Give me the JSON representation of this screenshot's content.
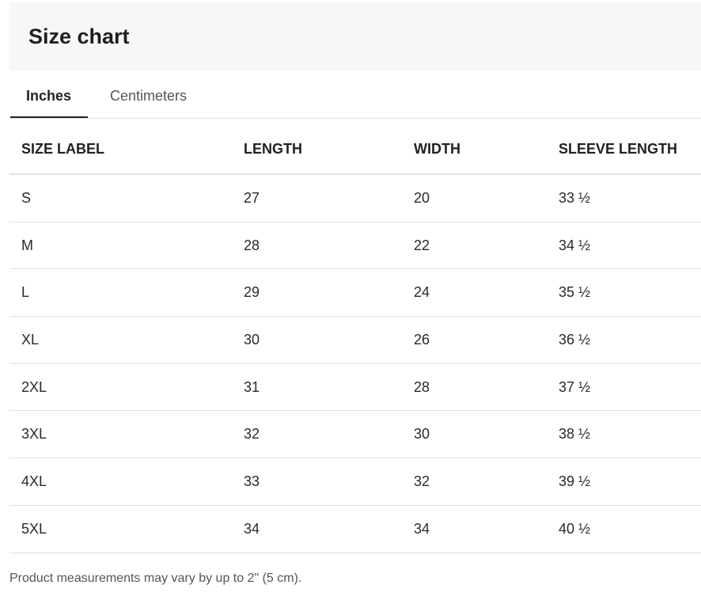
{
  "header": {
    "title": "Size chart"
  },
  "tabs": [
    {
      "label": "Inches",
      "active": true
    },
    {
      "label": "Centimeters",
      "active": false
    }
  ],
  "table": {
    "columns": [
      "SIZE LABEL",
      "LENGTH",
      "WIDTH",
      "SLEEVE LENGTH"
    ],
    "rows": [
      [
        "S",
        "27",
        "20",
        "33 ½"
      ],
      [
        "M",
        "28",
        "22",
        "34 ½"
      ],
      [
        "L",
        "29",
        "24",
        "35 ½"
      ],
      [
        "XL",
        "30",
        "26",
        "36 ½"
      ],
      [
        "2XL",
        "31",
        "28",
        "37 ½"
      ],
      [
        "3XL",
        "32",
        "30",
        "38 ½"
      ],
      [
        "4XL",
        "33",
        "32",
        "39 ½"
      ],
      [
        "5XL",
        "34",
        "34",
        "40 ½"
      ]
    ]
  },
  "footer": {
    "note": "Product measurements may vary by up to 2\" (5 cm)."
  }
}
